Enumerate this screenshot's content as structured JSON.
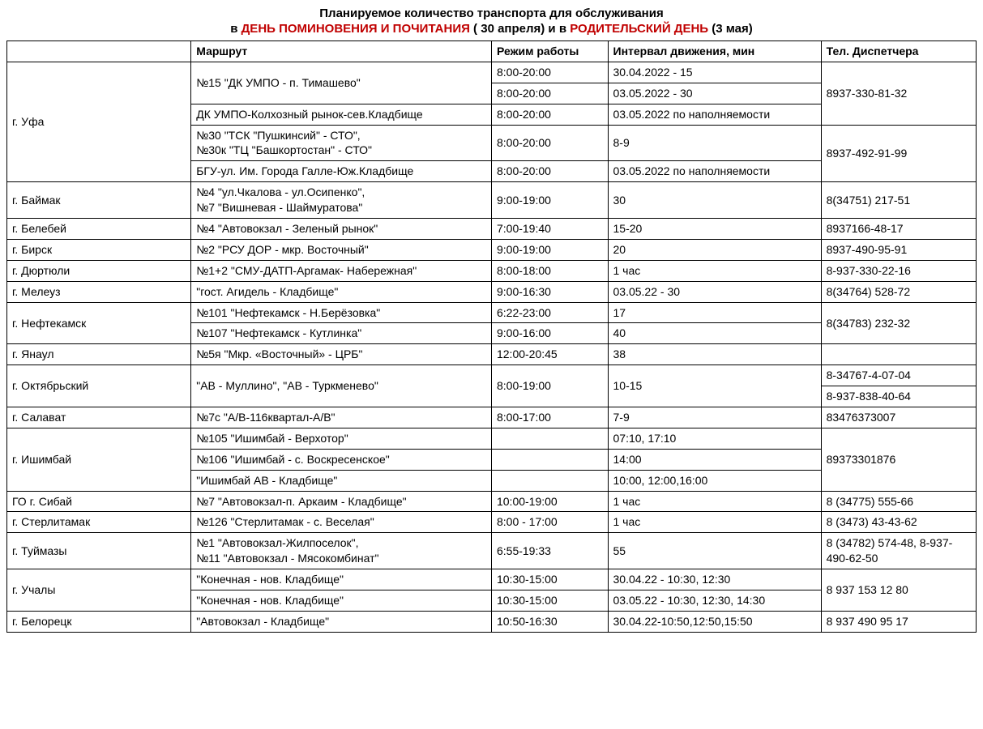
{
  "title1": "Планируемое количество транспорта для обслуживания",
  "title2_pre": "в ",
  "title2_red1": "ДЕНЬ ПОМИНОВЕНИЯ  И ПОЧИТАНИЯ",
  "title2_mid": " ( 30 апреля) и в ",
  "title2_red2": "РОДИТЕЛЬСКИЙ ДЕНЬ",
  "title2_post": " (3 мая)",
  "headers": {
    "city": "",
    "route": "Маршрут",
    "hours": "Режим работы",
    "interval": "Интервал движения, мин",
    "phone": "Тел. Диспетчера"
  },
  "rows": {
    "ufa_city": "г. Уфа",
    "ufa_r1_route": "№15 \"ДК УМПО - п. Тимашево\"",
    "ufa_r1a_hours": "8:00-20:00",
    "ufa_r1a_int": "30.04.2022 - 15",
    "ufa_r1b_hours": "8:00-20:00",
    "ufa_r1b_int": "03.05.2022 - 30",
    "ufa_r2_route": "ДК УМПО-Колхозный рынок-сев.Кладбище",
    "ufa_r2_hours": "8:00-20:00",
    "ufa_r2_int": "03.05.2022 по наполняемости",
    "ufa_phone1": "8937-330-81-32",
    "ufa_r3_route": "№30 \"ТСК \"Пушкинсий\" - СТО\",\n№30к \"ТЦ \"Башкортостан\" - СТО\"",
    "ufa_r3_hours": "8:00-20:00",
    "ufa_r3_int": "8-9",
    "ufa_r4_route": "БГУ-ул. Им. Города Галле-Юж.Кладбище",
    "ufa_r4_hours": "8:00-20:00",
    "ufa_r4_int": "03.05.2022 по наполняемости",
    "ufa_phone2": "8937-492-91-99",
    "baimak_city": "г. Баймак",
    "baimak_route": "№4 \"ул.Чкалова - ул.Осипенко\",\n№7 \"Вишневая - Шаймуратова\"",
    "baimak_hours": "9:00-19:00",
    "baimak_int": "30",
    "baimak_phone": "8(34751) 217-51",
    "belebey_city": "г. Белебей",
    "belebey_route": "№4 \"Автовокзал - Зеленый рынок\"",
    "belebey_hours": "7:00-19:40",
    "belebey_int": "15-20",
    "belebey_phone": "8937166-48-17",
    "birsk_city": "г. Бирск",
    "birsk_route": "№2 \"РСУ ДОР - мкр. Восточный\"",
    "birsk_hours": "9:00-19:00",
    "birsk_int": "20",
    "birsk_phone": "8937-490-95-91",
    "dyurtyuli_city": "г. Дюртюли",
    "dyurtyuli_route": "№1+2 \"СМУ-ДАТП-Аргамак- Набережная\"",
    "dyurtyuli_hours": "8:00-18:00",
    "dyurtyuli_int": "1 час",
    "dyurtyuli_phone": "8-937-330-22-16",
    "meleuz_city": "г. Мелеуз",
    "meleuz_route": "\"гост. Агидель - Кладбище\"",
    "meleuz_hours": "9:00-16:30",
    "meleuz_int": "03.05.22 - 30",
    "meleuz_phone": "8(34764) 528-72",
    "neftekamsk_city": "г. Нефтекамск",
    "neftekamsk_r1_route": "№101 \"Нефтекамск - Н.Берёзовка\"",
    "neftekamsk_r1_hours": "6:22-23:00",
    "neftekamsk_r1_int": "17",
    "neftekamsk_r2_route": "№107 \"Нефтекамск - Кутлинка\"",
    "neftekamsk_r2_hours": "9:00-16:00",
    "neftekamsk_r2_int": "40",
    "neftekamsk_phone": "8(34783) 232-32",
    "yanaul_city": "г. Янаул",
    "yanaul_route": "№5я \"Мкр. «Восточный» - ЦРБ\"",
    "yanaul_hours": "12:00-20:45",
    "yanaul_int": "38",
    "yanaul_phone": "",
    "oktyabrsky_city": "г. Октябрьский",
    "oktyabrsky_route": "\"АВ - Муллино\", \"АВ - Туркменево\"",
    "oktyabrsky_hours": "8:00-19:00",
    "oktyabrsky_int": "10-15",
    "oktyabrsky_phone1": "8-34767-4-07-04",
    "oktyabrsky_phone2": " 8-937-838-40-64",
    "salavat_city": "г. Салават",
    "salavat_route": "№7с \"А/В-116квартал-А/В\"",
    "salavat_hours": "8:00-17:00",
    "salavat_int": "7-9",
    "salavat_phone": "83476373007",
    "ishimbay_city": "г. Ишимбай",
    "ishimbay_r1_route": "№105 \"Ишимбай - Верхотор\"",
    "ishimbay_r1_hours": "",
    "ishimbay_r1_int": "07:10, 17:10",
    "ishimbay_r2_route": "№106 \"Ишимбай - с. Воскресенское\"",
    "ishimbay_r2_hours": "",
    "ishimbay_r2_int": "14:00",
    "ishimbay_r3_route": "\"Ишимбай АВ - Кладбище\"",
    "ishimbay_r3_hours": "",
    "ishimbay_r3_int": "10:00, 12:00,16:00",
    "ishimbay_phone": "89373301876",
    "sibay_city": "ГО г. Сибай",
    "sibay_route": "№7 \"Автовокзал-п. Аркаим - Кладбище\"",
    "sibay_hours": "10:00-19:00",
    "sibay_int": "1 час",
    "sibay_phone": "8 (34775) 555-66",
    "sterlitamak_city": "г. Стерлитамак",
    "sterlitamak_route": "№126 \"Стерлитамак - с. Веселая\"",
    "sterlitamak_hours": "8:00 - 17:00",
    "sterlitamak_int": "1 час",
    "sterlitamak_phone": "8 (3473) 43-43-62",
    "tuymazy_city": "г. Туймазы",
    "tuymazy_route": "№1 \"Автовокзал-Жилпоселок\",\n№11 \"Автовокзал - Мясокомбинат\"",
    "tuymazy_hours": "6:55-19:33",
    "tuymazy_int": "55",
    "tuymazy_phone": "8 (34782) 574-48,          8-937-490-62-50",
    "uchaly_city": "г. Учалы",
    "uchaly_r1_route": "\"Конечная - нов. Кладбище\"",
    "uchaly_r1_hours": "10:30-15:00",
    "uchaly_r1_int": "30.04.22 - 10:30, 12:30",
    "uchaly_r2_route": "\"Конечная - нов. Кладбище\"",
    "uchaly_r2_hours": "10:30-15:00",
    "uchaly_r2_int": "03.05.22 - 10:30, 12:30, 14:30",
    "uchaly_phone": "8 937 153 12 80",
    "beloretsk_city": "г. Белорецк",
    "beloretsk_route": "\"Автовокзал - Кладбище\"",
    "beloretsk_hours": "10:50-16:30",
    "beloretsk_int": "30.04.22-10:50,12:50,15:50",
    "beloretsk_phone": "8 937 490 95 17"
  }
}
